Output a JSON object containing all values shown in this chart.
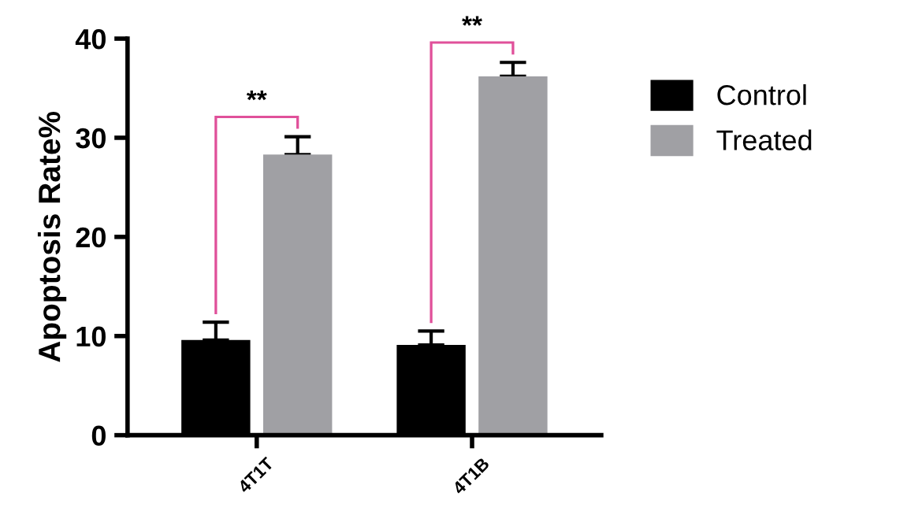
{
  "chart_data": {
    "type": "bar",
    "ylabel": "Apoptosis Rate%",
    "categories": [
      "4T1T",
      "4T1B"
    ],
    "series": [
      {
        "name": "Control",
        "color": "#000000",
        "values": [
          9.6,
          9.1
        ],
        "errors": [
          1.8,
          1.4
        ]
      },
      {
        "name": "Treated",
        "color": "#a0a0a4",
        "values": [
          28.3,
          36.2
        ],
        "errors": [
          1.8,
          1.4
        ]
      }
    ],
    "ylim": [
      0,
      40
    ],
    "yticks": [
      0,
      10,
      20,
      30,
      40
    ],
    "grid": false,
    "legend": "right",
    "annotations": [
      "**",
      "**"
    ]
  }
}
